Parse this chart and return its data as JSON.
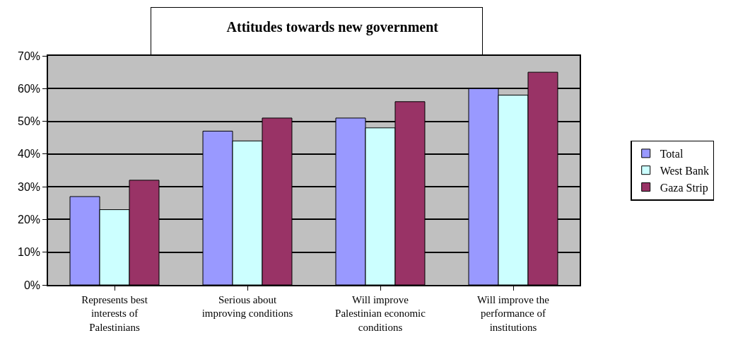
{
  "chart_data": {
    "type": "bar",
    "title": "Attitudes towards new government",
    "categories": [
      "Represents best interests of Palestinians",
      "Serious about improving conditions",
      "Will  improve Palestinian economic conditions",
      "Will improve the performance of institutions"
    ],
    "series": [
      {
        "name": "Total",
        "color": "#9999ff",
        "values": [
          27,
          47,
          51,
          60
        ]
      },
      {
        "name": "West Bank",
        "color": "#ccffff",
        "values": [
          23,
          44,
          48,
          58
        ]
      },
      {
        "name": "Gaza Strip",
        "color": "#993366",
        "values": [
          32,
          51,
          56,
          65
        ]
      }
    ],
    "ylim": [
      0,
      70
    ],
    "yticks": [
      {
        "value": 0,
        "label": "0%"
      },
      {
        "value": 10,
        "label": "10%"
      },
      {
        "value": 20,
        "label": "20%"
      },
      {
        "value": 30,
        "label": "30%"
      },
      {
        "value": 40,
        "label": "40%"
      },
      {
        "value": 50,
        "label": "50%"
      },
      {
        "value": 60,
        "label": "60%"
      },
      {
        "value": 70,
        "label": "70%"
      }
    ],
    "grid": "y",
    "legend": "right"
  }
}
